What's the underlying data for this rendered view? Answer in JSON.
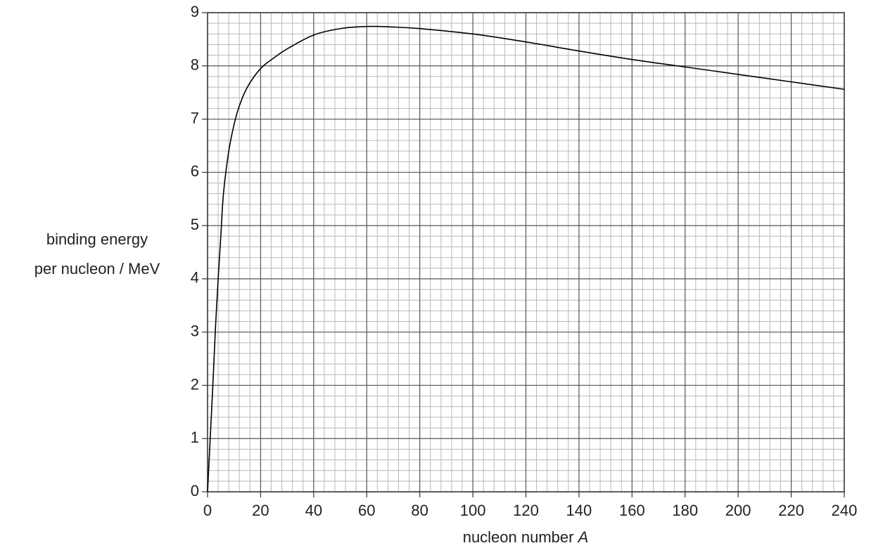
{
  "chart_data": {
    "type": "line",
    "ylabel": [
      "binding energy",
      "per nucleon / MeV"
    ],
    "xlabel": "nucleon number",
    "xlabel_symbol": "A",
    "x": [
      0,
      1,
      2,
      3,
      4,
      5,
      6,
      8,
      10,
      12,
      15,
      20,
      25,
      30,
      40,
      50,
      60,
      70,
      80,
      100,
      120,
      140,
      160,
      180,
      200,
      220,
      240
    ],
    "series": [
      {
        "color": "#000000",
        "values": [
          0,
          1.0,
          2.0,
          3.1,
          4.0,
          4.8,
          5.6,
          6.4,
          6.9,
          7.25,
          7.6,
          7.95,
          8.15,
          8.32,
          8.58,
          8.7,
          8.74,
          8.73,
          8.7,
          8.6,
          8.45,
          8.28,
          8.12,
          7.98,
          7.84,
          7.7,
          7.56
        ]
      }
    ],
    "xlim": [
      0,
      240
    ],
    "xticks": [
      0,
      20,
      40,
      60,
      80,
      100,
      120,
      140,
      160,
      180,
      200,
      220,
      240
    ],
    "ylim": [
      0,
      9
    ],
    "yticks": [
      0,
      1,
      2,
      3,
      4,
      5,
      6,
      7,
      8,
      9
    ],
    "grid": true
  }
}
